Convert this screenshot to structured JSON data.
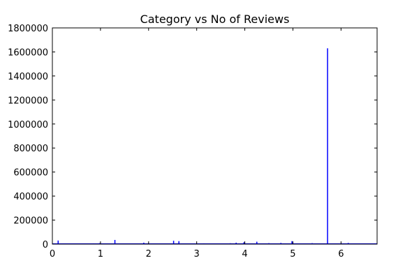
{
  "chart_data": {
    "type": "line",
    "title": "Category vs No of Reviews",
    "xlabel": "",
    "ylabel": "",
    "xlim": [
      0,
      6.75
    ],
    "ylim": [
      0,
      1800000
    ],
    "grid": false,
    "color": "#0000ff",
    "x_ticks": [
      {
        "value": 0,
        "label": "0"
      },
      {
        "value": 1,
        "label": "1"
      },
      {
        "value": 2,
        "label": "2"
      },
      {
        "value": 3,
        "label": "3"
      },
      {
        "value": 4,
        "label": "4"
      },
      {
        "value": 5,
        "label": "5"
      },
      {
        "value": 6,
        "label": "6"
      }
    ],
    "y_ticks": [
      {
        "value": 0,
        "label": "0"
      },
      {
        "value": 200000,
        "label": "200000"
      },
      {
        "value": 400000,
        "label": "400000"
      },
      {
        "value": 600000,
        "label": "600000"
      },
      {
        "value": 800000,
        "label": "800000"
      },
      {
        "value": 1000000,
        "label": "1000000"
      },
      {
        "value": 1200000,
        "label": "1200000"
      },
      {
        "value": 1400000,
        "label": "1400000"
      },
      {
        "value": 1600000,
        "label": "1600000"
      },
      {
        "value": 1800000,
        "label": "1800000"
      }
    ],
    "spikes": [
      {
        "x": 0.12,
        "y": 30000
      },
      {
        "x": 0.3,
        "y": 4000
      },
      {
        "x": 0.55,
        "y": 5000
      },
      {
        "x": 0.85,
        "y": 6000
      },
      {
        "x": 0.98,
        "y": 8000
      },
      {
        "x": 1.3,
        "y": 35000
      },
      {
        "x": 1.55,
        "y": 4000
      },
      {
        "x": 1.9,
        "y": 12000
      },
      {
        "x": 2.2,
        "y": 5000
      },
      {
        "x": 2.52,
        "y": 28000
      },
      {
        "x": 2.63,
        "y": 25000
      },
      {
        "x": 2.85,
        "y": 4000
      },
      {
        "x": 3.15,
        "y": 6000
      },
      {
        "x": 3.5,
        "y": 5000
      },
      {
        "x": 3.7,
        "y": 7000
      },
      {
        "x": 3.82,
        "y": 12000
      },
      {
        "x": 3.98,
        "y": 15000
      },
      {
        "x": 4.25,
        "y": 20000
      },
      {
        "x": 4.5,
        "y": 8000
      },
      {
        "x": 4.75,
        "y": 10000
      },
      {
        "x": 4.98,
        "y": 25000
      },
      {
        "x": 5.1,
        "y": 5000
      },
      {
        "x": 5.4,
        "y": 8000
      },
      {
        "x": 5.72,
        "y": 1630000
      },
      {
        "x": 6.15,
        "y": 10000
      },
      {
        "x": 6.4,
        "y": 5000
      },
      {
        "x": 6.7,
        "y": 6000
      }
    ]
  }
}
